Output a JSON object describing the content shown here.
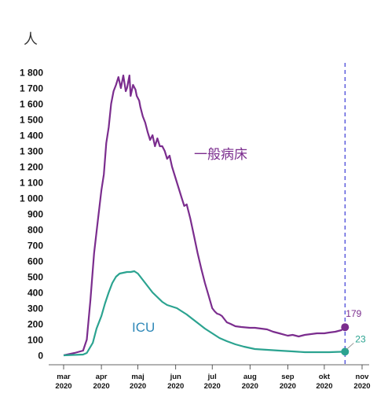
{
  "chart_data": {
    "type": "line",
    "unit_label": "人",
    "y_ticks": [
      0,
      100,
      200,
      300,
      400,
      500,
      600,
      700,
      800,
      900,
      1000,
      1100,
      1200,
      1300,
      1400,
      1500,
      1600,
      1700,
      1800
    ],
    "y_tick_labels": [
      "0",
      "100",
      "200",
      "300",
      "400",
      "500",
      "600",
      "700",
      "800",
      "900",
      "1 000",
      "1 100",
      "1 200",
      "1 300",
      "1 400",
      "1 500",
      "1 600",
      "1 700",
      "1 800"
    ],
    "ylim": [
      0,
      1800
    ],
    "x_ticks": [
      {
        "date": "2020-03-01",
        "line1": "mar",
        "line2": "2020"
      },
      {
        "date": "2020-04-01",
        "line1": "apr",
        "line2": "2020"
      },
      {
        "date": "2020-05-01",
        "line1": "maj",
        "line2": "2020"
      },
      {
        "date": "2020-06-01",
        "line1": "jun",
        "line2": "2020"
      },
      {
        "date": "2020-07-01",
        "line1": "jul",
        "line2": "2020"
      },
      {
        "date": "2020-08-01",
        "line1": "aug",
        "line2": "2020"
      },
      {
        "date": "2020-09-01",
        "line1": "sep",
        "line2": "2020"
      },
      {
        "date": "2020-10-01",
        "line1": "okt",
        "line2": "2020"
      },
      {
        "date": "2020-11-01",
        "line1": "nov",
        "line2": "2020"
      }
    ],
    "xlim": [
      "2020-03-01",
      "2020-11-01"
    ],
    "reference_line_date": "2020-10-18",
    "grid": false,
    "series": [
      {
        "name": "一般病床",
        "color": "#7b2d8e",
        "end_value": 179,
        "x": [
          "2020-03-01",
          "2020-03-10",
          "2020-03-17",
          "2020-03-20",
          "2020-03-23",
          "2020-03-26",
          "2020-03-29",
          "2020-04-01",
          "2020-04-03",
          "2020-04-05",
          "2020-04-07",
          "2020-04-09",
          "2020-04-11",
          "2020-04-13",
          "2020-04-15",
          "2020-04-17",
          "2020-04-19",
          "2020-04-21",
          "2020-04-22",
          "2020-04-24",
          "2020-04-25",
          "2020-04-27",
          "2020-04-29",
          "2020-04-30",
          "2020-05-02",
          "2020-05-03",
          "2020-05-05",
          "2020-05-07",
          "2020-05-09",
          "2020-05-11",
          "2020-05-13",
          "2020-05-15",
          "2020-05-17",
          "2020-05-19",
          "2020-05-21",
          "2020-05-23",
          "2020-05-25",
          "2020-05-27",
          "2020-05-29",
          "2020-05-31",
          "2020-06-02",
          "2020-06-04",
          "2020-06-06",
          "2020-06-08",
          "2020-06-10",
          "2020-06-13",
          "2020-06-16",
          "2020-06-19",
          "2020-06-22",
          "2020-06-25",
          "2020-06-28",
          "2020-07-01",
          "2020-07-03",
          "2020-07-05",
          "2020-07-07",
          "2020-07-09",
          "2020-07-11",
          "2020-07-13",
          "2020-07-16",
          "2020-07-20",
          "2020-07-25",
          "2020-08-01",
          "2020-08-05",
          "2020-08-10",
          "2020-08-15",
          "2020-08-20",
          "2020-08-25",
          "2020-09-01",
          "2020-09-05",
          "2020-09-10",
          "2020-09-15",
          "2020-09-20",
          "2020-09-25",
          "2020-10-01",
          "2020-10-05",
          "2020-10-10",
          "2020-10-15",
          "2020-10-18"
        ],
        "values": [
          0,
          15,
          30,
          100,
          350,
          650,
          850,
          1050,
          1150,
          1350,
          1450,
          1600,
          1680,
          1720,
          1770,
          1700,
          1780,
          1680,
          1700,
          1780,
          1650,
          1720,
          1690,
          1650,
          1620,
          1580,
          1520,
          1480,
          1420,
          1370,
          1400,
          1330,
          1380,
          1330,
          1330,
          1300,
          1250,
          1270,
          1200,
          1150,
          1100,
          1050,
          1000,
          950,
          960,
          870,
          760,
          650,
          550,
          460,
          380,
          300,
          280,
          265,
          260,
          250,
          230,
          210,
          200,
          185,
          180,
          175,
          175,
          170,
          165,
          150,
          140,
          125,
          130,
          120,
          130,
          135,
          140,
          140,
          145,
          150,
          160,
          179
        ]
      },
      {
        "name": "ICU",
        "color": "#2ba390",
        "end_value": 23,
        "x": [
          "2020-03-01",
          "2020-03-17",
          "2020-03-20",
          "2020-03-25",
          "2020-03-28",
          "2020-04-01",
          "2020-04-04",
          "2020-04-07",
          "2020-04-10",
          "2020-04-13",
          "2020-04-16",
          "2020-04-19",
          "2020-04-22",
          "2020-04-25",
          "2020-04-28",
          "2020-05-01",
          "2020-05-05",
          "2020-05-09",
          "2020-05-13",
          "2020-05-17",
          "2020-05-21",
          "2020-05-25",
          "2020-05-29",
          "2020-06-02",
          "2020-06-06",
          "2020-06-10",
          "2020-06-15",
          "2020-06-20",
          "2020-06-25",
          "2020-07-01",
          "2020-07-07",
          "2020-07-13",
          "2020-07-20",
          "2020-07-27",
          "2020-08-05",
          "2020-08-15",
          "2020-08-25",
          "2020-09-05",
          "2020-09-15",
          "2020-09-25",
          "2020-10-05",
          "2020-10-12",
          "2020-10-18"
        ],
        "values": [
          0,
          5,
          15,
          80,
          170,
          250,
          330,
          400,
          460,
          500,
          520,
          525,
          530,
          530,
          535,
          520,
          480,
          440,
          400,
          370,
          340,
          320,
          310,
          300,
          280,
          260,
          230,
          200,
          170,
          140,
          110,
          90,
          70,
          55,
          40,
          35,
          30,
          25,
          20,
          20,
          20,
          22,
          23
        ]
      }
    ]
  }
}
